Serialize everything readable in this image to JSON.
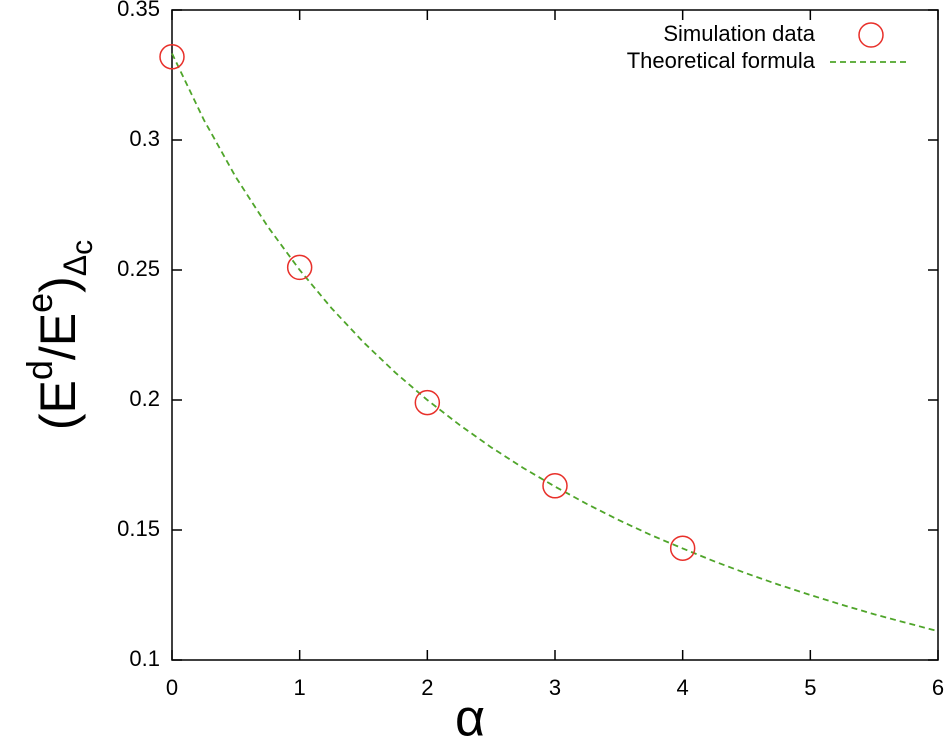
{
  "chart_data": {
    "type": "line",
    "xlabel": "α",
    "ylabel": [
      "(E",
      "d",
      "/E",
      "e",
      ")",
      "Δ",
      "c"
    ],
    "xlim": [
      0,
      6
    ],
    "xticks": [
      0,
      1,
      2,
      3,
      4,
      5,
      6
    ],
    "ylim": [
      0.1,
      0.35
    ],
    "yticks": [
      0.1,
      0.15,
      0.2,
      0.25,
      0.3,
      0.35
    ],
    "legend": "top-right",
    "series": [
      {
        "name": "Simulation data",
        "type": "scatter",
        "color": "#e8302a",
        "x": [
          0,
          1,
          2,
          3,
          4
        ],
        "values": [
          0.332,
          0.251,
          0.199,
          0.167,
          0.143
        ]
      },
      {
        "name": "Theoretical formula",
        "type": "line",
        "color": "#4fa52a",
        "x": [
          0,
          0.25,
          0.5,
          0.75,
          1,
          1.25,
          1.5,
          1.75,
          2,
          2.25,
          2.5,
          2.75,
          3,
          3.25,
          3.5,
          3.75,
          4,
          4.25,
          4.5,
          4.75,
          5,
          5.25,
          5.5,
          5.75,
          6
        ],
        "values": [
          0.3333,
          0.3077,
          0.2857,
          0.2667,
          0.25,
          0.2353,
          0.2222,
          0.2105,
          0.2,
          0.1905,
          0.1818,
          0.1739,
          0.1667,
          0.16,
          0.1538,
          0.1481,
          0.1429,
          0.1379,
          0.1333,
          0.129,
          0.125,
          0.1212,
          0.1176,
          0.1143,
          0.1111
        ]
      }
    ]
  }
}
